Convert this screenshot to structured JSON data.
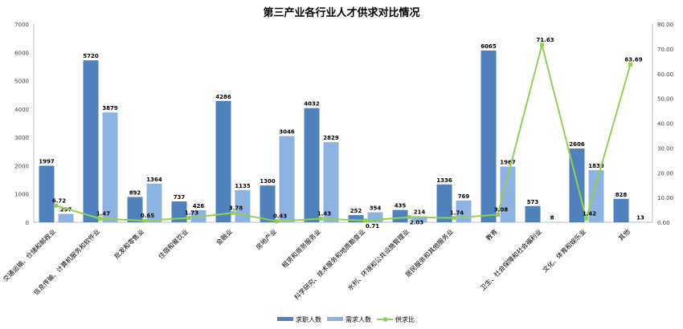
{
  "chart_data": {
    "type": "bar",
    "title": "第三产业各行业人才供求对比情况",
    "categories": [
      "交通运输、仓储和邮政业",
      "信息传输、计算机服务和软件业",
      "批发和零售业",
      "住宿和餐饮业",
      "金融业",
      "房地产业",
      "租赁和商务服务业",
      "科学研究、技术服务和地质勘查业",
      "水利、环境和公共设施管理业",
      "居民服务和其他服务业",
      "教育",
      "卫生、社会保障和社会福利业",
      "文化、体育和娱乐业",
      "其他"
    ],
    "series": [
      {
        "name": "求职人数",
        "type": "bar",
        "axis": "left",
        "color": "#4f81bd",
        "values": [
          1997,
          5720,
          892,
          737,
          4286,
          1300,
          4032,
          252,
          435,
          1336,
          6065,
          573,
          2606,
          828
        ]
      },
      {
        "name": "需求人数",
        "type": "bar",
        "axis": "left",
        "color": "#8db3e2",
        "values": [
          297,
          3879,
          1364,
          426,
          1135,
          3046,
          2829,
          354,
          214,
          769,
          1967,
          8,
          1838,
          13
        ]
      },
      {
        "name": "供求比",
        "type": "line",
        "axis": "right",
        "color": "#92d050",
        "values": [
          6.72,
          1.47,
          0.65,
          1.73,
          3.78,
          0.43,
          1.43,
          0.71,
          2.03,
          1.74,
          3.08,
          71.63,
          1.42,
          63.69
        ]
      }
    ],
    "y_left": {
      "range": [
        0,
        7000
      ],
      "ticks": [
        "0",
        "1000",
        "2000",
        "3000",
        "4000",
        "5000",
        "6000",
        "7000"
      ]
    },
    "y_right": {
      "range": [
        0,
        80
      ],
      "ticks": [
        "0.00",
        "10.00",
        "20.00",
        "30.00",
        "40.00",
        "50.00",
        "60.00",
        "70.00",
        "80.00"
      ]
    },
    "grid": false,
    "legend": "bottom"
  }
}
